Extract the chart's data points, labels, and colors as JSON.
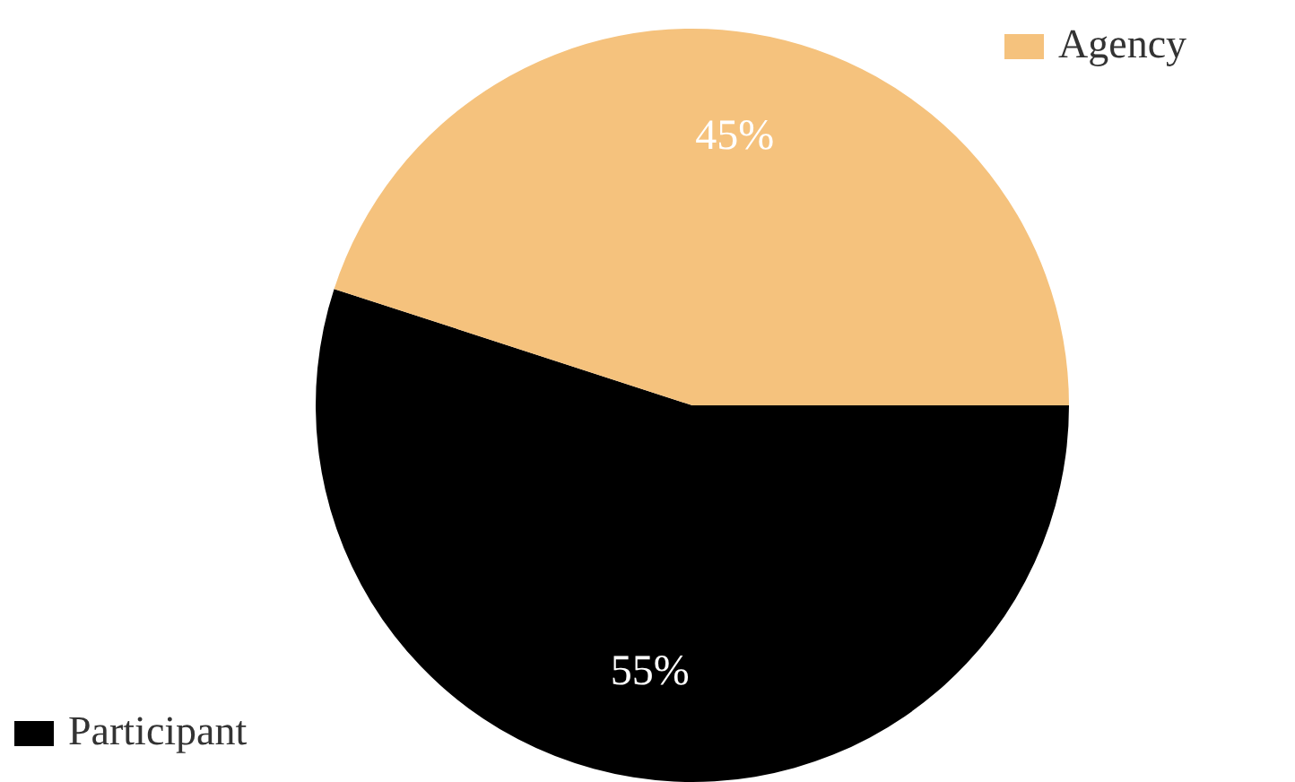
{
  "chart_data": {
    "type": "pie",
    "categories": [
      "Participant",
      "Agency"
    ],
    "values": [
      55,
      45
    ],
    "colors": [
      "#000000",
      "#f5c27d"
    ],
    "value_labels": [
      "55%",
      "45%"
    ],
    "legend": "top left"
  }
}
